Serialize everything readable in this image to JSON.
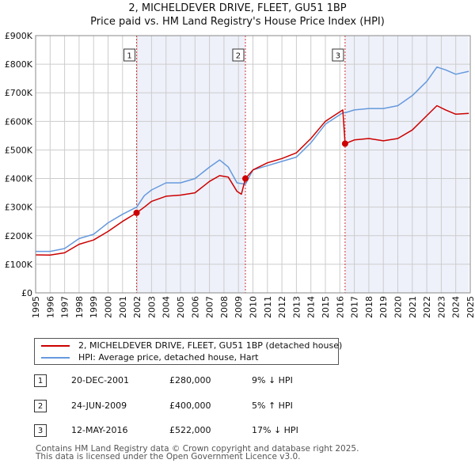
{
  "header": {
    "title": "2, MICHELDEVER DRIVE, FLEET, GU51 1BP",
    "subtitle": "Price paid vs. HM Land Registry's House Price Index (HPI)"
  },
  "colors": {
    "property": "#cc0000",
    "hpi": "#6699dd",
    "shade": "#eef1fa",
    "marker_line": "#cc0000",
    "grid": "#cccccc"
  },
  "chart_data": {
    "type": "line",
    "title": "Price paid vs. HM Land Registry's House Price Index (HPI)",
    "xlim": [
      1995,
      2025
    ],
    "ylim": [
      0,
      900000
    ],
    "y_ticks": [
      {
        "value": 0,
        "label": "£0"
      },
      {
        "value": 100000,
        "label": "£100K"
      },
      {
        "value": 200000,
        "label": "£200K"
      },
      {
        "value": 300000,
        "label": "£300K"
      },
      {
        "value": 400000,
        "label": "£400K"
      },
      {
        "value": 500000,
        "label": "£500K"
      },
      {
        "value": 600000,
        "label": "£600K"
      },
      {
        "value": 700000,
        "label": "£700K"
      },
      {
        "value": 800000,
        "label": "£800K"
      },
      {
        "value": 900000,
        "label": "£900K"
      }
    ],
    "x_ticks": [
      "1995",
      "1996",
      "1997",
      "1998",
      "1999",
      "2000",
      "2001",
      "2002",
      "2003",
      "2004",
      "2005",
      "2006",
      "2007",
      "2008",
      "2009",
      "2010",
      "2011",
      "2012",
      "2013",
      "2014",
      "2015",
      "2016",
      "2017",
      "2018",
      "2019",
      "2020",
      "2021",
      "2022",
      "2023",
      "2024",
      "2025"
    ],
    "shaded_ranges": [
      [
        2001.97,
        2009.48
      ],
      [
        2016.36,
        2024.9
      ]
    ],
    "series": [
      {
        "name": "2, MICHELDEVER DRIVE, FLEET, GU51 1BP (detached house)",
        "color": "#cc0000",
        "points": [
          [
            1995,
            133000
          ],
          [
            1996,
            132000
          ],
          [
            1997,
            140000
          ],
          [
            1998,
            170000
          ],
          [
            1999,
            185000
          ],
          [
            2000,
            215000
          ],
          [
            2001,
            250000
          ],
          [
            2001.97,
            280000
          ],
          [
            2002.5,
            300000
          ],
          [
            2003,
            320000
          ],
          [
            2004,
            338000
          ],
          [
            2005,
            342000
          ],
          [
            2006,
            350000
          ],
          [
            2007,
            390000
          ],
          [
            2007.7,
            410000
          ],
          [
            2008.3,
            405000
          ],
          [
            2008.9,
            355000
          ],
          [
            2009.2,
            345000
          ],
          [
            2009.48,
            400000
          ],
          [
            2010,
            430000
          ],
          [
            2011,
            455000
          ],
          [
            2012,
            470000
          ],
          [
            2013,
            490000
          ],
          [
            2014,
            540000
          ],
          [
            2015,
            600000
          ],
          [
            2016.2,
            640000
          ],
          [
            2016.36,
            522000
          ],
          [
            2017,
            535000
          ],
          [
            2018,
            540000
          ],
          [
            2019,
            532000
          ],
          [
            2020,
            540000
          ],
          [
            2021,
            570000
          ],
          [
            2022,
            620000
          ],
          [
            2022.7,
            655000
          ],
          [
            2023.3,
            640000
          ],
          [
            2024,
            625000
          ],
          [
            2024.9,
            628000
          ]
        ]
      },
      {
        "name": "HPI: Average price, detached house, Hart",
        "color": "#6699dd",
        "points": [
          [
            1995,
            145000
          ],
          [
            1996,
            145000
          ],
          [
            1997,
            155000
          ],
          [
            1998,
            190000
          ],
          [
            1999,
            205000
          ],
          [
            2000,
            245000
          ],
          [
            2001,
            275000
          ],
          [
            2001.97,
            300000
          ],
          [
            2002.5,
            340000
          ],
          [
            2003,
            360000
          ],
          [
            2004,
            385000
          ],
          [
            2005,
            385000
          ],
          [
            2006,
            400000
          ],
          [
            2007,
            440000
          ],
          [
            2007.7,
            465000
          ],
          [
            2008.3,
            440000
          ],
          [
            2008.9,
            385000
          ],
          [
            2009.48,
            380000
          ],
          [
            2010,
            430000
          ],
          [
            2011,
            445000
          ],
          [
            2012,
            460000
          ],
          [
            2013,
            475000
          ],
          [
            2014,
            525000
          ],
          [
            2015,
            590000
          ],
          [
            2016.2,
            630000
          ],
          [
            2016.36,
            630000
          ],
          [
            2017,
            640000
          ],
          [
            2018,
            645000
          ],
          [
            2019,
            645000
          ],
          [
            2020,
            655000
          ],
          [
            2021,
            690000
          ],
          [
            2022,
            740000
          ],
          [
            2022.7,
            790000
          ],
          [
            2023.3,
            780000
          ],
          [
            2024,
            765000
          ],
          [
            2024.9,
            775000
          ]
        ]
      }
    ],
    "sales": [
      {
        "label": "1",
        "x": 2001.97,
        "price": 280000
      },
      {
        "label": "2",
        "x": 2009.48,
        "price": 400000
      },
      {
        "label": "3",
        "x": 2016.36,
        "price": 522000
      }
    ]
  },
  "legend": {
    "property_label": "2, MICHELDEVER DRIVE, FLEET, GU51 1BP (detached house)",
    "hpi_label": "HPI: Average price, detached house, Hart"
  },
  "transactions": [
    {
      "num": "1",
      "date": "20-DEC-2001",
      "price": "£280,000",
      "hpi": "9% ↓ HPI"
    },
    {
      "num": "2",
      "date": "24-JUN-2009",
      "price": "£400,000",
      "hpi": "5% ↑ HPI"
    },
    {
      "num": "3",
      "date": "12-MAY-2016",
      "price": "£522,000",
      "hpi": "17% ↓ HPI"
    }
  ],
  "footer": {
    "line1": "Contains HM Land Registry data © Crown copyright and database right 2025.",
    "line2": "This data is licensed under the Open Government Licence v3.0."
  }
}
